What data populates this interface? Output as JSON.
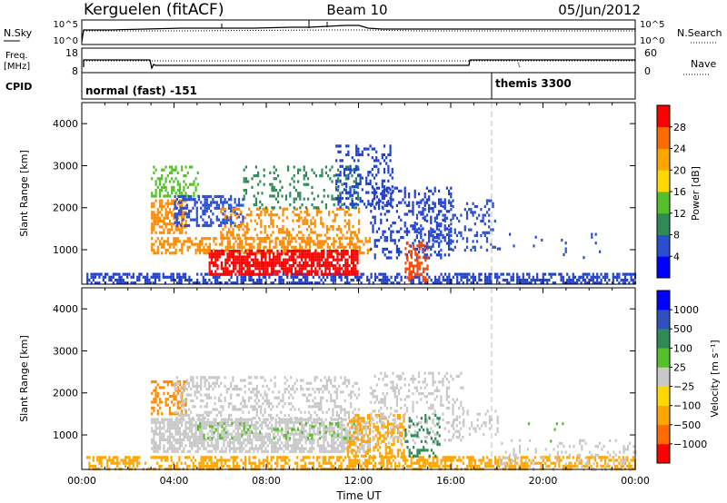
{
  "header": {
    "station": "Kerguelen (fitACF)",
    "beam": "Beam 10",
    "date": "05/Jun/2012"
  },
  "top_panels": {
    "nsky_label": "N.Sky",
    "nsearch_label": "N.Search",
    "log_ticks": [
      "10^5",
      "10^0"
    ],
    "freq_label": "Freq.",
    "freq_unit": "[MHz]",
    "freq_ticks": [
      "18",
      "8"
    ],
    "nave_label": "Nave",
    "nave_ticks": [
      "60",
      "0"
    ],
    "cpid_label": "CPID",
    "cpid_modes": [
      {
        "name": "normal (fast) -151",
        "start_hour": 0
      },
      {
        "name": "themis 3300",
        "start_hour": 18
      }
    ]
  },
  "chart_data": [
    {
      "type": "heatmap",
      "quantity": "Power",
      "xlabel": "",
      "ylabel": "Slant Range [km]",
      "x_range_hours": [
        0,
        24
      ],
      "ylim": [
        180,
        4500
      ],
      "y_ticks": [
        1000,
        2000,
        3000,
        4000
      ],
      "colorbar": {
        "label": "Power [dB]",
        "ticks": [
          "4",
          "8",
          "12",
          "16",
          "20",
          "24",
          "28"
        ],
        "colors": [
          "#0000ff",
          "#2a4ed0",
          "#2e8b57",
          "#55c02a",
          "#ffd700",
          "#ffa500",
          "#ff6a00",
          "#ff0000"
        ]
      },
      "bands": [
        {
          "x0": 0.2,
          "x1": 24,
          "y0": 200,
          "y1": 450,
          "color": "#1f3fcf",
          "density": 0.55
        },
        {
          "x0": 3.0,
          "x1": 4.5,
          "y0": 1400,
          "y1": 2200,
          "color": "#ff8c00",
          "density": 0.6
        },
        {
          "x0": 3.0,
          "x1": 5.0,
          "y0": 2300,
          "y1": 3000,
          "color": "#55c02a",
          "density": 0.4
        },
        {
          "x0": 4.0,
          "x1": 7.0,
          "y0": 1600,
          "y1": 2300,
          "color": "#2a4ed0",
          "density": 0.5
        },
        {
          "x0": 3.0,
          "x1": 12.5,
          "y0": 900,
          "y1": 1300,
          "color": "#ff8c00",
          "density": 0.55
        },
        {
          "x0": 5.5,
          "x1": 12.0,
          "y0": 400,
          "y1": 1000,
          "color": "#ff0000",
          "density": 0.75
        },
        {
          "x0": 6.0,
          "x1": 12.0,
          "y0": 1300,
          "y1": 2000,
          "color": "#ff8c00",
          "density": 0.35
        },
        {
          "x0": 7.0,
          "x1": 12.0,
          "y0": 2000,
          "y1": 3000,
          "color": "#2e8b57",
          "density": 0.2
        },
        {
          "x0": 11.0,
          "x1": 13.5,
          "y0": 2000,
          "y1": 3500,
          "color": "#1f3fcf",
          "density": 0.3
        },
        {
          "x0": 12.5,
          "x1": 16.0,
          "y0": 800,
          "y1": 2500,
          "color": "#1f3fcf",
          "density": 0.3
        },
        {
          "x0": 14.0,
          "x1": 15.0,
          "y0": 300,
          "y1": 1200,
          "color": "#ff4500",
          "density": 0.5
        },
        {
          "x0": 14.5,
          "x1": 18.0,
          "y0": 1000,
          "y1": 2200,
          "color": "#2a4ed0",
          "density": 0.2
        },
        {
          "x0": 18.0,
          "x1": 22.5,
          "y0": 800,
          "y1": 1400,
          "color": "#2a4ed0",
          "density": 0.06
        }
      ]
    },
    {
      "type": "heatmap",
      "quantity": "Velocity",
      "xlabel": "Time UT",
      "ylabel": "Slant Range [km]",
      "x_range_hours": [
        0,
        24
      ],
      "ylim": [
        180,
        4500
      ],
      "y_ticks": [
        1000,
        2000,
        3000,
        4000
      ],
      "x_ticks": [
        "00:00",
        "04:00",
        "08:00",
        "12:00",
        "16:00",
        "20:00",
        "00:00"
      ],
      "colorbar": {
        "label": "Velocity [m s⁻¹]",
        "ticks": [
          "1000",
          "500",
          "100",
          "25",
          "−25",
          "−100",
          "−500",
          "−1000"
        ],
        "colors": [
          "#0000ff",
          "#3050c0",
          "#2e8b57",
          "#55c02a",
          "#c8c8c8",
          "#ffd700",
          "#ffa500",
          "#ff6a00",
          "#ff0000"
        ]
      },
      "bands": [
        {
          "x0": 0.2,
          "x1": 24,
          "y0": 200,
          "y1": 500,
          "color": "#ffa500",
          "density": 0.55
        },
        {
          "x0": 3.0,
          "x1": 4.5,
          "y0": 1500,
          "y1": 2300,
          "color": "#ff8c00",
          "density": 0.45
        },
        {
          "x0": 3.0,
          "x1": 12.5,
          "y0": 600,
          "y1": 1400,
          "color": "#c8c8c8",
          "density": 0.7
        },
        {
          "x0": 4.0,
          "x1": 12.0,
          "y0": 1400,
          "y1": 2400,
          "color": "#c8c8c8",
          "density": 0.3
        },
        {
          "x0": 5.0,
          "x1": 12.0,
          "y0": 900,
          "y1": 1300,
          "color": "#55c02a",
          "density": 0.15
        },
        {
          "x0": 11.5,
          "x1": 14.0,
          "y0": 500,
          "y1": 1500,
          "color": "#ffa500",
          "density": 0.45
        },
        {
          "x0": 12.5,
          "x1": 16.5,
          "y0": 800,
          "y1": 2500,
          "color": "#c8c8c8",
          "density": 0.25
        },
        {
          "x0": 14.0,
          "x1": 15.5,
          "y0": 500,
          "y1": 1500,
          "color": "#2e8b57",
          "density": 0.25
        },
        {
          "x0": 16.0,
          "x1": 18.0,
          "y0": 1000,
          "y1": 1600,
          "color": "#c8c8c8",
          "density": 0.25
        },
        {
          "x0": 18.0,
          "x1": 24.0,
          "y0": 200,
          "y1": 900,
          "color": "#c8c8c8",
          "density": 0.15
        },
        {
          "x0": 19.0,
          "x1": 21.0,
          "y0": 700,
          "y1": 1300,
          "color": "#55c02a",
          "density": 0.05
        }
      ]
    }
  ]
}
